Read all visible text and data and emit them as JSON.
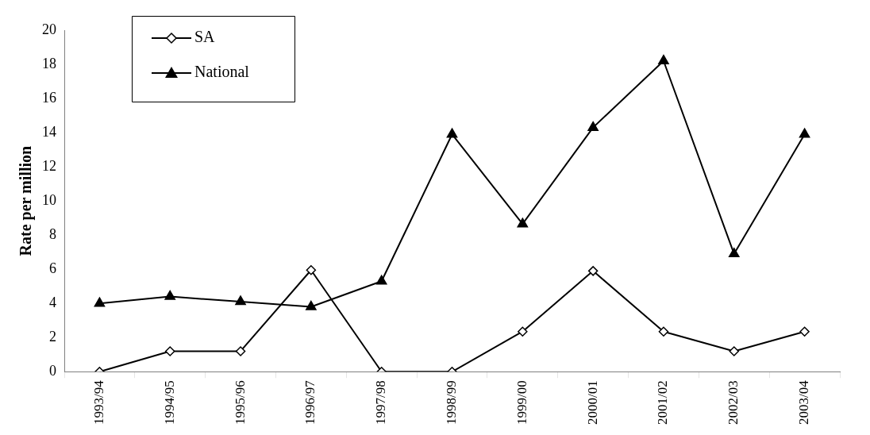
{
  "chart_data": {
    "type": "line",
    "ylabel": "Rate per million",
    "categories": [
      "1993/94",
      "1994/95",
      "1995/96",
      "1996/97",
      "1997/98",
      "1998/99",
      "1999/00",
      "2000/01",
      "2001/02",
      "2002/03",
      "2003/04"
    ],
    "series": [
      {
        "name": "SA",
        "color": "#000000",
        "marker": "diamond",
        "values": [
          0,
          1.2,
          1.2,
          5.95,
          0,
          0,
          2.35,
          5.9,
          2.35,
          1.2,
          2.35
        ]
      },
      {
        "name": "National",
        "color": "#000000",
        "marker": "triangle",
        "values": [
          4.0,
          4.4,
          4.1,
          3.8,
          5.3,
          13.9,
          8.65,
          14.3,
          18.2,
          6.9,
          13.9
        ]
      }
    ],
    "ylim": [
      0,
      20
    ],
    "yticks": [
      0,
      2,
      4,
      6,
      8,
      10,
      12,
      14,
      16,
      18,
      20
    ],
    "grid": false,
    "legend": "top left",
    "line_style": "solid"
  }
}
